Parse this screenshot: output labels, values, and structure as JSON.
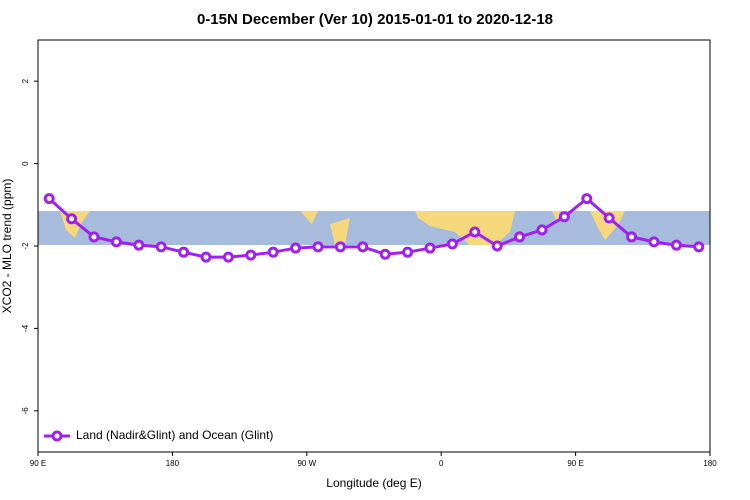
{
  "chart_data": {
    "type": "line",
    "title": "0-15N December (Ver 10)   2015-01-01 to 2020-12-18",
    "x_label": "Longitude (deg E)",
    "y_label": "XCO2 - MLO trend (ppm)",
    "x": [
      97.5,
      112.5,
      127.5,
      142.5,
      157.5,
      172.5,
      187.5,
      202.5,
      217.5,
      232.5,
      247.5,
      262.5,
      277.5,
      292.5,
      307.5,
      322.5,
      337.5,
      352.5,
      367.5,
      382.5,
      397.5,
      412.5,
      427.5,
      442.5,
      457.5,
      472.5,
      487.5,
      502.5,
      517.5,
      532.5
    ],
    "series": [
      {
        "name": "Land (Nadir&Glint) and Ocean (Glint)",
        "color": "#a020f0",
        "values": [
          -0.85,
          -1.34,
          -1.78,
          -1.9,
          -1.98,
          -2.02,
          -2.15,
          -2.27,
          -2.27,
          -2.22,
          -2.15,
          -2.05,
          -2.02,
          -2.02,
          -2.02,
          -2.2,
          -2.15,
          -2.05,
          -1.95,
          -1.66,
          -2.0,
          -1.78,
          -1.61,
          -1.29,
          -0.85,
          -1.32,
          -1.78,
          -1.9,
          -1.98,
          -2.02
        ]
      }
    ],
    "xlim": [
      90,
      540
    ],
    "xticks": [
      {
        "value": 90,
        "label": "90 E"
      },
      180,
      {
        "value": 270,
        "label": "90 W"
      },
      {
        "value": 360,
        "label": "0"
      },
      {
        "value": 450,
        "label": "90 E"
      },
      {
        "value": 540,
        "label": "180"
      }
    ],
    "ylim": [
      -7,
      3
    ],
    "yticks": [
      -6,
      -4,
      -2,
      0,
      2
    ],
    "legend": "bottom-left"
  }
}
